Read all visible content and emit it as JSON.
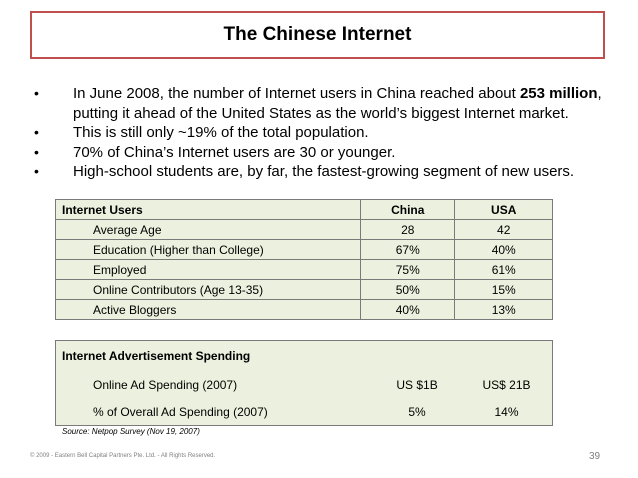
{
  "title": "The Chinese Internet",
  "bullets": [
    {
      "pre": "In June 2008, the number of Internet users in China reached about ",
      "bold": "253 million",
      "post": ", putting it ahead of the United States as the world’s biggest Internet market."
    },
    {
      "pre": "This is still only ~19% of the total population.",
      "bold": "",
      "post": ""
    },
    {
      "pre": "70% of China’s Internet users are 30 or younger.",
      "bold": "",
      "post": ""
    },
    {
      "pre": "High-school students are, by far, the fastest-growing segment of new users.",
      "bold": "",
      "post": ""
    }
  ],
  "users_table": {
    "header": [
      "Internet Users",
      "China",
      "USA"
    ],
    "rows": [
      [
        "Average Age",
        "28",
        "42"
      ],
      [
        "Education (Higher than College)",
        "67%",
        "40%"
      ],
      [
        "Employed",
        "75%",
        "61%"
      ],
      [
        "Online Contributors (Age 13-35)",
        "50%",
        "15%"
      ],
      [
        "Active Bloggers",
        "40%",
        "13%"
      ]
    ]
  },
  "ad_table": {
    "header": "Internet Advertisement Spending",
    "rows": [
      [
        "Online Ad Spending (2007)",
        "US $1B",
        "US$ 21B"
      ],
      [
        "% of Overall Ad Spending (2007)",
        "5%",
        "14%"
      ]
    ]
  },
  "source": "Source:  Netpop Survey (Nov 19, 2007)",
  "footer": "© 2009 - Eastern Bell Capital Partners Pte. Ltd. - All Rights Reserved.",
  "page_number": "39"
}
